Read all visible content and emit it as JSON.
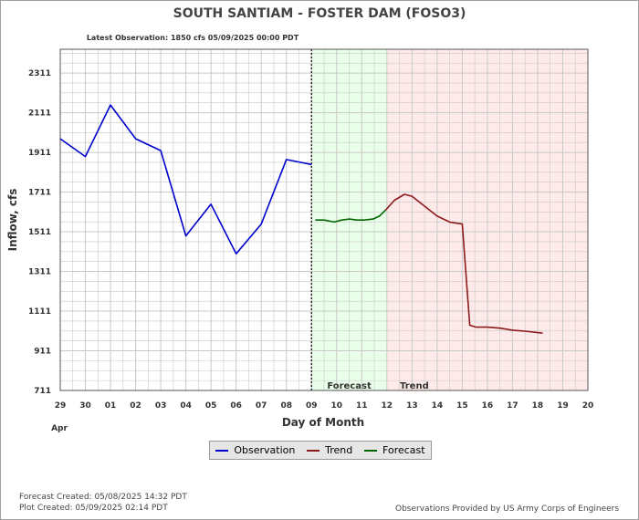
{
  "title": "SOUTH SANTIAM - FOSTER DAM  (FOSO3)",
  "latest_observation": "Latest Observation: 1850 cfs 05/09/2025 00:00 PDT",
  "footer": {
    "forecast_created": "Forecast Created: 05/08/2025 14:32 PDT",
    "plot_created": "Plot Created: 05/09/2025 02:14 PDT",
    "provider": "Observations Provided by US Army Corps of Engineers"
  },
  "colors": {
    "observation": "#0000cc",
    "trend": "#8b1a1a",
    "forecast": "#006400",
    "forecast_band": "#eaffea",
    "trend_band": "#ffeaea",
    "grid": "#c8c8c8"
  },
  "chart_data": {
    "type": "line",
    "title": "SOUTH SANTIAM - FOSTER DAM  (FOSO3)",
    "xlabel": "Day of Month",
    "ylabel": "Inflow, cfs",
    "x_tick_labels": [
      "29",
      "30",
      "01",
      "02",
      "03",
      "04",
      "05",
      "06",
      "07",
      "08",
      "09",
      "10",
      "11",
      "12",
      "13",
      "14",
      "15",
      "16",
      "17",
      "18",
      "19",
      "20"
    ],
    "x_sublabel": "Apr",
    "xlim": [
      0,
      21
    ],
    "ylim": [
      711,
      2431
    ],
    "y_ticks": [
      711,
      911,
      1111,
      1311,
      1511,
      1711,
      1911,
      2111,
      2311
    ],
    "grid": true,
    "legend_position": "bottom-center",
    "regions": [
      {
        "label": "Forecast",
        "x_start": 10,
        "x_end": 13
      },
      {
        "label": "Trend",
        "x_start": 13,
        "x_end": 21
      }
    ],
    "current_time_line_x": 10,
    "series": [
      {
        "name": "Observation",
        "x": [
          0,
          1,
          2,
          3,
          4,
          5,
          6,
          7,
          8,
          9,
          10
        ],
        "y": [
          1980,
          1890,
          2150,
          1980,
          1920,
          1490,
          1650,
          1400,
          1550,
          1875,
          1850
        ]
      },
      {
        "name": "Forecast",
        "x": [
          10.15,
          10.5,
          10.9,
          11.2,
          11.5,
          11.8,
          12.1,
          12.45,
          12.7,
          12.95
        ],
        "y": [
          1570,
          1570,
          1560,
          1570,
          1575,
          1570,
          1570,
          1575,
          1590,
          1620
        ]
      },
      {
        "name": "Trend",
        "x": [
          12.95,
          13.3,
          13.7,
          14.0,
          14.5,
          15.0,
          15.5,
          16.0,
          16.3,
          16.55,
          17.0,
          17.5,
          18.0,
          18.5,
          19.2
        ],
        "y": [
          1620,
          1670,
          1700,
          1690,
          1640,
          1590,
          1560,
          1550,
          1040,
          1030,
          1030,
          1025,
          1015,
          1010,
          1000
        ]
      }
    ]
  },
  "legend": {
    "observation": "Observation",
    "trend": "Trend",
    "forecast": "Forecast"
  }
}
